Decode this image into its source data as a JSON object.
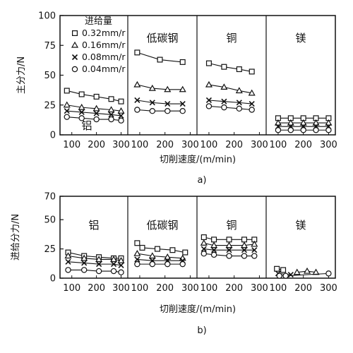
{
  "figure": {
    "caption_a": "a)",
    "caption_b": "b)"
  },
  "chart_data": [
    {
      "type": "line",
      "id": "a",
      "ylabel": "主分力/N",
      "xlabel": "切削速度/(m/min)",
      "ylim": [
        0,
        100
      ],
      "yticks": [
        0,
        25,
        50,
        75,
        100
      ],
      "xlim": [
        75,
        310
      ],
      "xticks": [
        100,
        200,
        300
      ],
      "legend": {
        "title": "进给量",
        "entries": [
          "0.32mm/r",
          "0.16mm/r",
          "0.08mm/r",
          "0.04mm/r"
        ],
        "placement": "top-left"
      },
      "panels": [
        {
          "label": "铝",
          "label_position": "bottom",
          "series": [
            {
              "name": "0.32mm/r",
              "marker": "square",
              "x": [
                80,
                140,
                200,
                260,
                300
              ],
              "y": [
                37,
                34,
                32,
                30,
                28
              ]
            },
            {
              "name": "0.16mm/r",
              "marker": "triangle",
              "x": [
                80,
                140,
                200,
                260,
                300
              ],
              "y": [
                25,
                23,
                22,
                21,
                20
              ]
            },
            {
              "name": "0.08mm/r",
              "marker": "cross",
              "x": [
                80,
                140,
                200,
                260,
                300
              ],
              "y": [
                20,
                19,
                18,
                17,
                16
              ]
            },
            {
              "name": "0.04mm/r",
              "marker": "circle",
              "x": [
                80,
                140,
                200,
                260,
                300
              ],
              "y": [
                15,
                14,
                13,
                13,
                12
              ]
            }
          ]
        },
        {
          "label": "低碳钢",
          "label_position": "top",
          "series": [
            {
              "name": "0.32mm/r",
              "marker": "square",
              "x": [
                90,
                180,
                270
              ],
              "y": [
                69,
                63,
                61
              ]
            },
            {
              "name": "0.16mm/r",
              "marker": "triangle",
              "x": [
                90,
                150,
                210,
                270
              ],
              "y": [
                42,
                39,
                38,
                38
              ]
            },
            {
              "name": "0.08mm/r",
              "marker": "cross",
              "x": [
                90,
                150,
                210,
                270
              ],
              "y": [
                29,
                27,
                26,
                26
              ]
            },
            {
              "name": "0.04mm/r",
              "marker": "circle",
              "x": [
                90,
                150,
                210,
                270
              ],
              "y": [
                21,
                20,
                20,
                20
              ]
            }
          ]
        },
        {
          "label": "铜",
          "label_position": "top",
          "series": [
            {
              "name": "0.32mm/r",
              "marker": "square",
              "x": [
                100,
                160,
                220,
                270
              ],
              "y": [
                60,
                57,
                55,
                53
              ]
            },
            {
              "name": "0.16mm/r",
              "marker": "triangle",
              "x": [
                100,
                160,
                220,
                270
              ],
              "y": [
                42,
                40,
                37,
                35
              ]
            },
            {
              "name": "0.08mm/r",
              "marker": "cross",
              "x": [
                100,
                160,
                220,
                270
              ],
              "y": [
                29,
                28,
                27,
                26
              ]
            },
            {
              "name": "0.04mm/r",
              "marker": "circle",
              "x": [
                100,
                160,
                220,
                270
              ],
              "y": [
                24,
                23,
                22,
                21
              ]
            }
          ]
        },
        {
          "label": "镁",
          "label_position": "top",
          "series": [
            {
              "name": "0.32mm/r",
              "marker": "square",
              "x": [
                100,
                150,
                200,
                250,
                300
              ],
              "y": [
                14,
                14,
                14,
                14,
                14
              ]
            },
            {
              "name": "0.16mm/r",
              "marker": "triangle",
              "x": [
                100,
                150,
                200,
                250,
                300
              ],
              "y": [
                10,
                10,
                10,
                10,
                10
              ]
            },
            {
              "name": "0.08mm/r",
              "marker": "cross",
              "x": [
                100,
                150,
                200,
                250,
                300
              ],
              "y": [
                7,
                7,
                7,
                7,
                7
              ]
            },
            {
              "name": "0.04mm/r",
              "marker": "circle",
              "x": [
                100,
                150,
                200,
                250,
                300
              ],
              "y": [
                4,
                4,
                4,
                4,
                4
              ]
            }
          ]
        }
      ]
    },
    {
      "type": "line",
      "id": "b",
      "ylabel": "进给分力/N",
      "xlabel": "切削速度/(m/min)",
      "ylim": [
        0,
        70
      ],
      "yticks": [
        0,
        25,
        50,
        70
      ],
      "xlim": [
        75,
        310
      ],
      "xticks": [
        100,
        200,
        300
      ],
      "panels": [
        {
          "label": "铝",
          "label_position": "top",
          "series": [
            {
              "name": "0.32mm/r",
              "marker": "square",
              "x": [
                85,
                150,
                210,
                270,
                300
              ],
              "y": [
                22,
                19,
                18,
                17,
                17
              ]
            },
            {
              "name": "0.16mm/r",
              "marker": "triangle",
              "x": [
                85,
                150,
                210,
                270,
                300
              ],
              "y": [
                19,
                17,
                16,
                16,
                15
              ]
            },
            {
              "name": "0.08mm/r",
              "marker": "cross",
              "x": [
                85,
                150,
                210,
                270,
                300
              ],
              "y": [
                14,
                13,
                12,
                12,
                11
              ]
            },
            {
              "name": "0.04mm/r",
              "marker": "circle",
              "x": [
                85,
                150,
                210,
                270,
                300
              ],
              "y": [
                7,
                7,
                6,
                6,
                5
              ]
            }
          ]
        },
        {
          "label": "低碳钢",
          "label_position": "top",
          "series": [
            {
              "name": "0.32mm/r",
              "marker": "square",
              "x": [
                90,
                110,
                170,
                230,
                280
              ],
              "y": [
                30,
                26,
                25,
                24,
                22
              ]
            },
            {
              "name": "0.16mm/r",
              "marker": "triangle",
              "x": [
                90,
                150,
                210,
                270
              ],
              "y": [
                21,
                19,
                18,
                17
              ]
            },
            {
              "name": "0.08mm/r",
              "marker": "cross",
              "x": [
                90,
                150,
                210,
                270
              ],
              "y": [
                16,
                15,
                15,
                15
              ]
            },
            {
              "name": "0.04mm/r",
              "marker": "circle",
              "x": [
                90,
                150,
                210,
                270
              ],
              "y": [
                12,
                12,
                12,
                12
              ]
            }
          ]
        },
        {
          "label": "铜",
          "label_position": "top",
          "series": [
            {
              "name": "0.32mm/r",
              "marker": "square",
              "x": [
                80,
                120,
                180,
                240,
                280
              ],
              "y": [
                35,
                33,
                33,
                33,
                33
              ]
            },
            {
              "name": "0.16mm/r",
              "marker": "triangle",
              "x": [
                80,
                120,
                180,
                240,
                280
              ],
              "y": [
                30,
                28,
                28,
                28,
                29
              ]
            },
            {
              "name": "0.08mm/r",
              "marker": "cross",
              "x": [
                80,
                120,
                180,
                240,
                280
              ],
              "y": [
                25,
                24,
                24,
                24,
                24
              ]
            },
            {
              "name": "0.04mm/r",
              "marker": "circle",
              "x": [
                80,
                120,
                180,
                240,
                280
              ],
              "y": [
                21,
                20,
                19,
                19,
                19
              ]
            }
          ]
        },
        {
          "label": "镁",
          "label_position": "top",
          "series": [
            {
              "name": "0.32mm/r",
              "marker": "square",
              "x": [
                95,
                120
              ],
              "y": [
                8,
                7
              ]
            },
            {
              "name": "0.16mm/r",
              "marker": "triangle",
              "x": [
                175,
                215,
                250
              ],
              "y": [
                5,
                6,
                5
              ]
            },
            {
              "name": "0.08mm/r",
              "marker": "cross",
              "x": [
                100,
                150
              ],
              "y": [
                4,
                3
              ]
            },
            {
              "name": "0.04mm/r",
              "marker": "circle",
              "x": [
                105,
                130,
                300
              ],
              "y": [
                2,
                2,
                4
              ]
            }
          ]
        }
      ]
    }
  ]
}
